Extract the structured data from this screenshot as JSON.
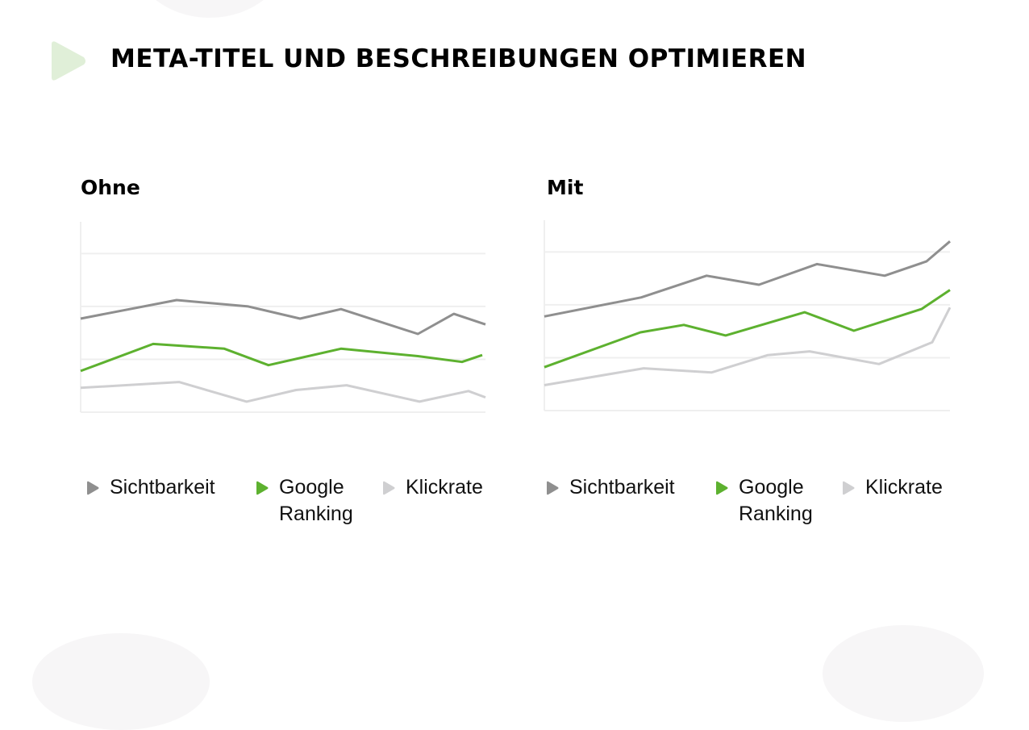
{
  "title": "META-TITEL UND BESCHREIBUNGEN OPTIMIEREN",
  "colors": {
    "sichtbarkeit": "#8f8f8f",
    "google_ranking": "#5db12f",
    "klickrate": "#cfcfd1",
    "grid": "#efefef",
    "title_icon": "#e0efd8"
  },
  "icons": {
    "title": "play-triangle-icon",
    "legend": "triangle-marker-icon"
  },
  "chart_data": [
    {
      "type": "line",
      "title": "Ohne",
      "xlim": [
        0,
        100
      ],
      "ylim": [
        0,
        3.6
      ],
      "grid": true,
      "gridlines_y": [
        0,
        1,
        2,
        3
      ],
      "legend_position": "bottom",
      "legend": [
        "Sichtbarkeit",
        "Google Ranking",
        "Klickrate"
      ],
      "series": [
        {
          "name": "Sichtbarkeit",
          "color": "#8f8f8f",
          "x": [
            0,
            23.7,
            41.4,
            54.2,
            64.3,
            83.3,
            92.2,
            100
          ],
          "y": [
            1.77,
            2.12,
            2.0,
            1.77,
            1.95,
            1.48,
            1.86,
            1.66
          ]
        },
        {
          "name": "Google Ranking",
          "color": "#5db12f",
          "x": [
            0,
            17.9,
            35.5,
            46.4,
            64.3,
            83.3,
            94.2,
            99.2
          ],
          "y": [
            0.78,
            1.29,
            1.2,
            0.89,
            1.2,
            1.06,
            0.95,
            1.08
          ]
        },
        {
          "name": "Klickrate",
          "color": "#cfcfd1",
          "x": [
            0,
            24.3,
            41.0,
            53.2,
            65.7,
            83.7,
            95.8,
            100
          ],
          "y": [
            0.46,
            0.57,
            0.2,
            0.42,
            0.51,
            0.2,
            0.4,
            0.28
          ]
        }
      ]
    },
    {
      "type": "line",
      "title": "Mit",
      "xlim": [
        0,
        100
      ],
      "ylim": [
        0,
        3.6
      ],
      "grid": true,
      "gridlines_y": [
        0,
        1,
        2,
        3
      ],
      "legend_position": "bottom",
      "legend": [
        "Sichtbarkeit",
        "Google Ranking",
        "Klickrate"
      ],
      "series": [
        {
          "name": "Sichtbarkeit",
          "color": "#8f8f8f",
          "x": [
            0,
            23.9,
            40.0,
            52.9,
            67.2,
            83.9,
            94.2,
            100
          ],
          "y": [
            1.78,
            2.14,
            2.55,
            2.38,
            2.77,
            2.55,
            2.82,
            3.2
          ]
        },
        {
          "name": "Google Ranking",
          "color": "#5db12f",
          "x": [
            0,
            23.7,
            34.4,
            44.7,
            64.2,
            76.3,
            93.0,
            100
          ],
          "y": [
            0.82,
            1.48,
            1.62,
            1.42,
            1.86,
            1.51,
            1.92,
            2.28
          ]
        },
        {
          "name": "Klickrate",
          "color": "#cfcfd1",
          "x": [
            0,
            24.5,
            41.2,
            55.1,
            65.4,
            82.5,
            95.6,
            100
          ],
          "y": [
            0.48,
            0.8,
            0.72,
            1.05,
            1.12,
            0.88,
            1.29,
            1.95
          ]
        }
      ]
    }
  ]
}
